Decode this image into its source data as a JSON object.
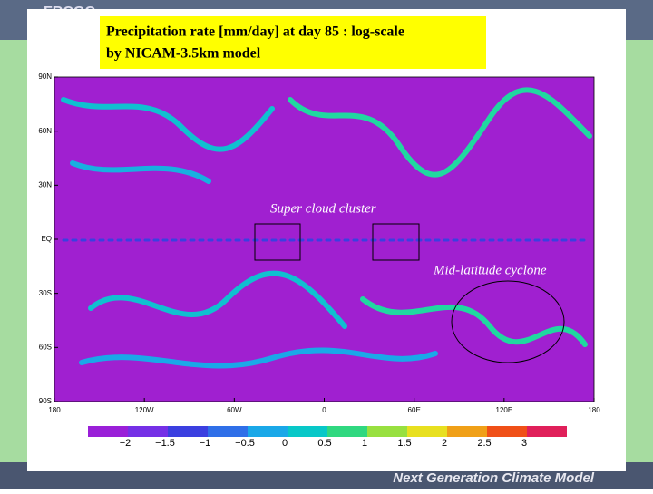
{
  "header": {
    "logo": "FRCGC",
    "title_lines": [
      "Precipitation rate [mm/day] at day 85 : log-scale",
      "by NICAM-3.5km model"
    ]
  },
  "map": {
    "lat_labels": [
      "90N",
      "60N",
      "30N",
      "EQ",
      "30S",
      "60S",
      "90S"
    ],
    "lon_labels": [
      "180",
      "120W",
      "60W",
      "0",
      "60E",
      "120E",
      "180"
    ],
    "annotations": [
      "Super cloud cluster",
      "Mid-latitude cyclone"
    ]
  },
  "colorbar": {
    "labels": [
      "−2",
      "−1.5",
      "−1",
      "−0.5",
      "0",
      "0.5",
      "1",
      "1.5",
      "2",
      "2.5",
      "3"
    ],
    "colors": [
      "#9a1fd8",
      "#7530e6",
      "#3b3fe0",
      "#2f6fe8",
      "#1aa8e8",
      "#08c8c8",
      "#30d880",
      "#98e040",
      "#e8e020",
      "#f0a018",
      "#f05018",
      "#e0205a"
    ]
  },
  "footer": {
    "text": "Next Generation Climate Model"
  }
}
